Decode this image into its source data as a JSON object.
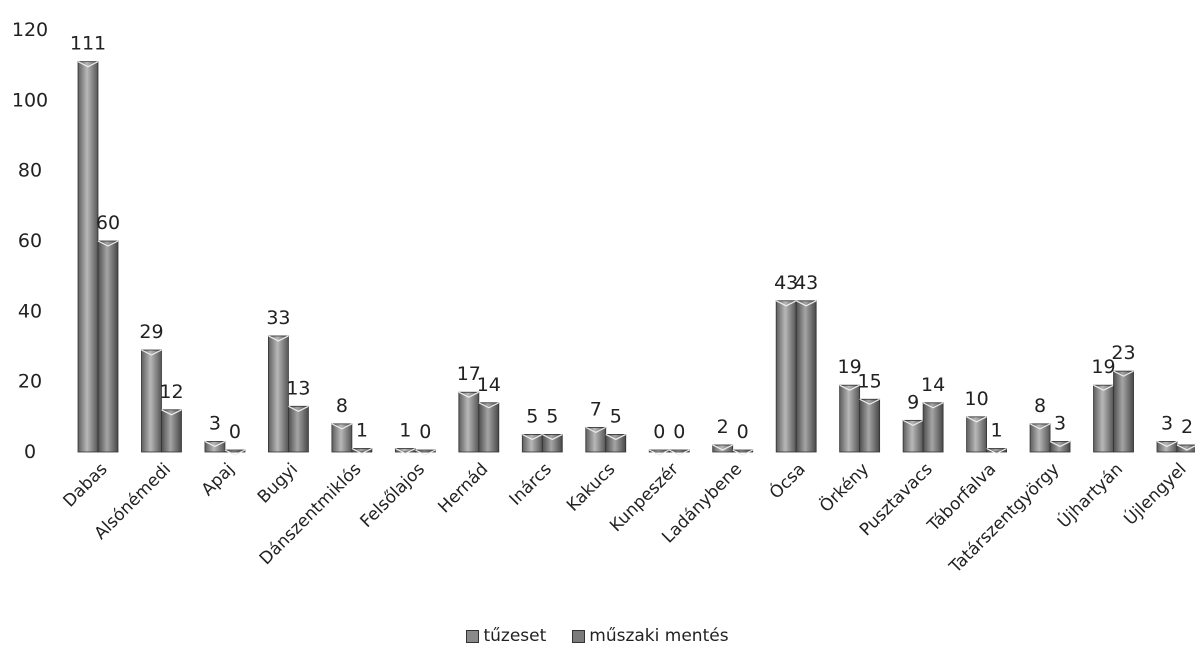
{
  "chart_data": {
    "type": "bar",
    "categories": [
      "Dabas",
      "Alsónémedi",
      "Apaj",
      "Bugyi",
      "Dánszentmiklós",
      "Felsőlajos",
      "Hernád",
      "Inárcs",
      "Kakucs",
      "Kunpeszér",
      "Ladánybene",
      "Ócsa",
      "Örkény",
      "Pusztavacs",
      "Táborfalva",
      "Tatárszentgyörgy",
      "Újhartyán",
      "Újlengyel"
    ],
    "series": [
      {
        "name": "tűzeset",
        "values": [
          111,
          29,
          3,
          33,
          8,
          1,
          17,
          5,
          7,
          0,
          2,
          43,
          19,
          9,
          10,
          8,
          19,
          3
        ]
      },
      {
        "name": "műszaki mentés",
        "values": [
          60,
          12,
          0,
          13,
          1,
          0,
          14,
          5,
          5,
          0,
          0,
          43,
          15,
          14,
          1,
          3,
          23,
          2
        ]
      }
    ],
    "ylim": [
      0,
      120
    ],
    "yticks": [
      0,
      20,
      40,
      60,
      80,
      100,
      120
    ],
    "grid": false,
    "legend_position": "bottom",
    "colors": {
      "tuzeset": "#8a8a8a",
      "muszaki": "#7b7b7b"
    },
    "title": "",
    "xlabel": "",
    "ylabel": ""
  }
}
